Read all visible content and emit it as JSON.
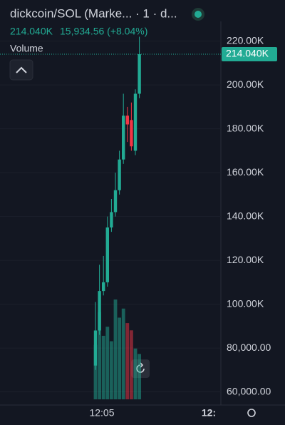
{
  "chart_data": {
    "type": "candlestick",
    "title": "dickcoin/SOL (Marke... · 1 · d...",
    "change_label": "15,934.56 (+8.04%)",
    "volume_label": "Volume",
    "last_price": 214040,
    "last_price_label": "214.040K",
    "up_color": "#22ab94",
    "down_color": "#f23645",
    "open": [
      72000,
      88000,
      106000,
      110000,
      135000,
      142000,
      152000,
      166000,
      186000,
      184000,
      170000,
      196000
    ],
    "high": [
      101000,
      118000,
      122000,
      140000,
      148000,
      160000,
      170000,
      196000,
      190000,
      192000,
      198000,
      222000
    ],
    "low": [
      70000,
      86000,
      104000,
      108000,
      133000,
      140000,
      150000,
      164000,
      174000,
      170000,
      168000,
      194000
    ],
    "close": [
      88000,
      106000,
      110000,
      135000,
      142000,
      152000,
      166000,
      186000,
      182000,
      172000,
      196000,
      214040
    ],
    "volume": [
      30,
      48,
      35,
      40,
      32,
      55,
      45,
      50,
      42,
      38,
      28,
      25
    ],
    "ylim": [
      54000,
      229000
    ],
    "yticks": [
      {
        "value": 220000,
        "label": "220.00K"
      },
      {
        "value": 200000,
        "label": "200.00K"
      },
      {
        "value": 180000,
        "label": "180.00K"
      },
      {
        "value": 160000,
        "label": "160.00K"
      },
      {
        "value": 140000,
        "label": "140.00K"
      },
      {
        "value": 120000,
        "label": "120.00K"
      },
      {
        "value": 100000,
        "label": "100.00K"
      },
      {
        "value": 80000,
        "label": "80,000.00"
      },
      {
        "value": 60000,
        "label": "60,000.00"
      }
    ],
    "x_labels": [
      "12:05",
      "12:"
    ]
  }
}
